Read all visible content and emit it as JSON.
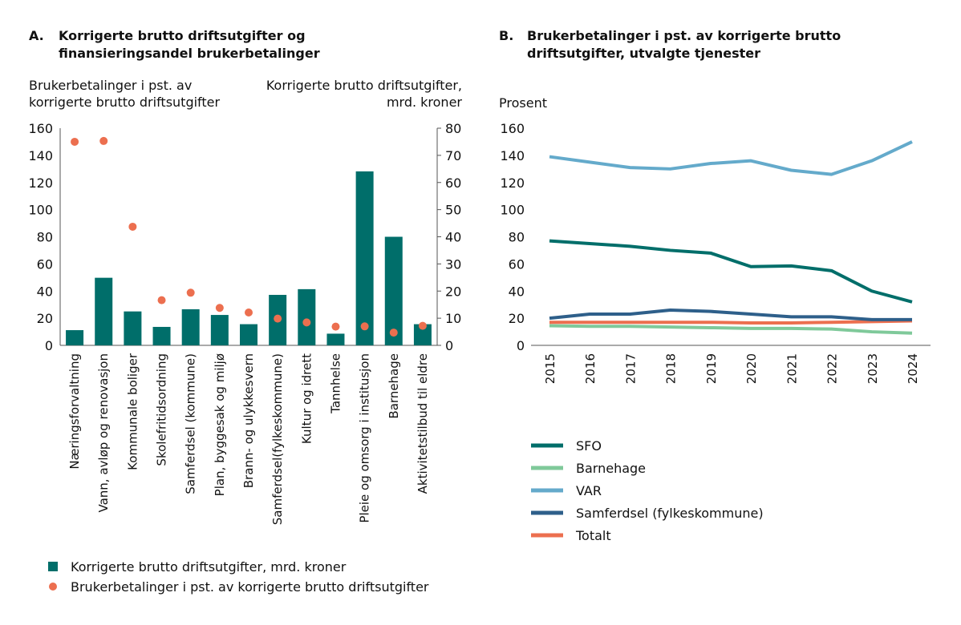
{
  "chart_data": [
    {
      "type": "bar",
      "panel": "A.",
      "title": "Korrigerte brutto driftsutgifter og finansieringsandel brukerbetalinger",
      "ylabel_left": "Brukerbetalinger i pst. av korrigerte brutto driftsutgifter",
      "ylabel_right": "Korrigerte brutto driftsutgifter, mrd. kroner",
      "ylim_left": [
        0,
        160
      ],
      "ylim_right": [
        0,
        80
      ],
      "yticks_left": [
        0,
        20,
        40,
        60,
        80,
        100,
        120,
        140,
        160
      ],
      "yticks_right": [
        0,
        10,
        20,
        30,
        40,
        50,
        60,
        70,
        80
      ],
      "categories": [
        "Næringsforvaltning",
        "Vann, avløp og renovasjon",
        "Kommunale boliger",
        "Skolefritidsordning",
        "Samferdsel (kommune)",
        "Plan, byggesak og miljø",
        "Brann- og ulykkesvern",
        "Samferdsel(fylkeskommune)",
        "Kultur og idrett",
        "Tannhelse",
        "Pleie og omsorg i institusjon",
        "Barnehage",
        "Aktivitetstilbud til eldre"
      ],
      "series": [
        {
          "name": "Korrigerte brutto driftsutgifter, mrd. kroner",
          "type": "bar",
          "axis": "right",
          "color": "#006e6a",
          "values": [
            5.6,
            24.9,
            12.5,
            6.8,
            13.3,
            11.2,
            7.8,
            18.6,
            20.7,
            4.3,
            64.1,
            40,
            7.8
          ]
        },
        {
          "name": "Brukerbetalinger i pst. av korrigerte brutto driftsutgifter",
          "type": "scatter",
          "axis": "left",
          "color": "#ec6f4f",
          "values": [
            150,
            150.6,
            87.4,
            33.3,
            38.8,
            27.6,
            24.2,
            19.7,
            16.9,
            13.8,
            14,
            9.4,
            14.4
          ]
        }
      ],
      "legend": "bottom"
    },
    {
      "type": "line",
      "panel": "B.",
      "title": "Brukerbetalinger i pst. av korrigerte brutto driftsutgifter, utvalgte tjenester",
      "ylabel": "Prosent",
      "ylim": [
        0,
        160
      ],
      "yticks": [
        0,
        20,
        40,
        60,
        80,
        100,
        120,
        140,
        160
      ],
      "x": [
        "2015",
        "2016",
        "2017",
        "2018",
        "2019",
        "2020",
        "2021",
        "2022",
        "2023",
        "2024"
      ],
      "series": [
        {
          "name": "SFO",
          "color": "#006e6a",
          "values": [
            77,
            75,
            73,
            70,
            68,
            58,
            58.5,
            55,
            40,
            32
          ]
        },
        {
          "name": "Barnehage",
          "color": "#7fc99a",
          "values": [
            14.5,
            14,
            14,
            13.5,
            13,
            12.5,
            12.5,
            12,
            10,
            9
          ]
        },
        {
          "name": "VAR",
          "color": "#64aacb",
          "values": [
            139,
            135,
            131,
            130,
            134,
            136,
            129,
            126,
            136,
            150
          ]
        },
        {
          "name": "Samferdsel (fylkeskommune)",
          "color": "#2e5f8a",
          "values": [
            20,
            23,
            23,
            26,
            25,
            23,
            21,
            21,
            19,
            19
          ]
        },
        {
          "name": "Totalt",
          "color": "#ec6f4f",
          "values": [
            17,
            17,
            17,
            17,
            17,
            16.5,
            16.5,
            17,
            17.5,
            18
          ]
        }
      ],
      "legend": "bottom"
    }
  ]
}
